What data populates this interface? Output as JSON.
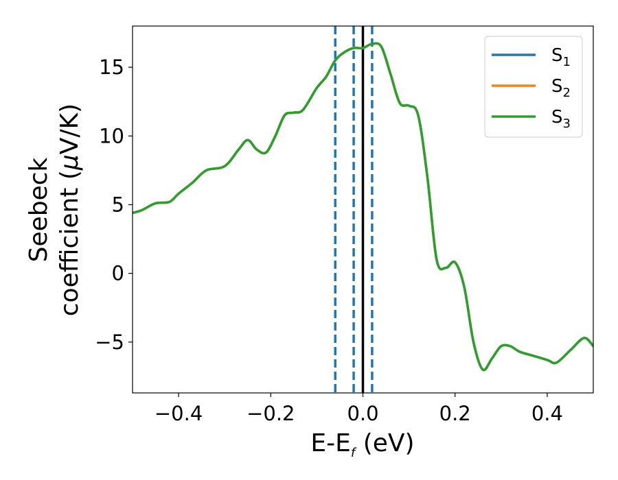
{
  "chart_data": {
    "type": "line",
    "xlabel_main": "E-E",
    "xlabel_sub": "f",
    "xlabel_unit": " (eV)",
    "ylabel_line1": "Seebeck",
    "ylabel_line2_text": "coefficient  (",
    "ylabel_line2_mu": "μ",
    "ylabel_line2_unit": "V/K)",
    "xlim": [
      -0.5,
      0.5
    ],
    "ylim": [
      -8.7,
      18.0
    ],
    "x_ticks": [
      -0.4,
      -0.2,
      0.0,
      0.2,
      0.4
    ],
    "x_tick_labels": [
      "−0.4",
      "−0.2",
      "0.0",
      "0.2",
      "0.4"
    ],
    "y_ticks": [
      -5,
      0,
      5,
      10,
      15
    ],
    "y_tick_labels": [
      "−5",
      "0",
      "5",
      "10",
      "15"
    ],
    "grid": false,
    "legend_position": "top-right",
    "series": [
      {
        "name": "S",
        "subscript": "1",
        "color": "#1f77b4",
        "x": [
          -0.5,
          -0.48,
          -0.45,
          -0.42,
          -0.4,
          -0.37,
          -0.34,
          -0.3,
          -0.27,
          -0.25,
          -0.23,
          -0.21,
          -0.19,
          -0.17,
          -0.15,
          -0.13,
          -0.1,
          -0.08,
          -0.06,
          -0.04,
          -0.02,
          0.0,
          0.02,
          0.04,
          0.06,
          0.08,
          0.1,
          0.12,
          0.14,
          0.16,
          0.18,
          0.2,
          0.22,
          0.24,
          0.26,
          0.28,
          0.3,
          0.32,
          0.34,
          0.37,
          0.4,
          0.42,
          0.45,
          0.48,
          0.5
        ],
        "y": [
          4.4,
          4.6,
          5.1,
          5.2,
          5.8,
          6.6,
          7.5,
          7.8,
          9.0,
          9.7,
          9.0,
          8.8,
          10.0,
          11.5,
          11.7,
          11.9,
          13.5,
          14.3,
          15.5,
          16.1,
          16.4,
          16.4,
          16.7,
          16.5,
          14.5,
          12.4,
          12.2,
          11.5,
          7.0,
          1.0,
          0.4,
          0.8,
          -1.0,
          -5.0,
          -7.0,
          -6.2,
          -5.3,
          -5.3,
          -5.7,
          -6.0,
          -6.3,
          -6.5,
          -5.6,
          -4.7,
          -5.3
        ]
      },
      {
        "name": "S",
        "subscript": "2",
        "color": "#ff7f0e",
        "x": [
          -0.5,
          -0.48,
          -0.45,
          -0.42,
          -0.4,
          -0.37,
          -0.34,
          -0.3,
          -0.27,
          -0.25,
          -0.23,
          -0.21,
          -0.19,
          -0.17,
          -0.15,
          -0.13,
          -0.1,
          -0.08,
          -0.06,
          -0.04,
          -0.02,
          0.0,
          0.02,
          0.04,
          0.06,
          0.08,
          0.1,
          0.12,
          0.14,
          0.16,
          0.18,
          0.2,
          0.22,
          0.24,
          0.26,
          0.28,
          0.3,
          0.32,
          0.34,
          0.37,
          0.4,
          0.42,
          0.45,
          0.48,
          0.5
        ],
        "y": [
          4.4,
          4.6,
          5.1,
          5.2,
          5.8,
          6.6,
          7.5,
          7.8,
          9.0,
          9.7,
          9.0,
          8.8,
          10.0,
          11.5,
          11.7,
          11.9,
          13.5,
          14.3,
          15.5,
          16.1,
          16.4,
          16.4,
          16.7,
          16.5,
          14.5,
          12.4,
          12.2,
          11.5,
          7.0,
          1.0,
          0.4,
          0.8,
          -1.0,
          -5.0,
          -7.0,
          -6.2,
          -5.3,
          -5.3,
          -5.7,
          -6.0,
          -6.3,
          -6.5,
          -5.6,
          -4.7,
          -5.3
        ]
      },
      {
        "name": "S",
        "subscript": "3",
        "color": "#2ca02c",
        "x": [
          -0.5,
          -0.48,
          -0.45,
          -0.42,
          -0.4,
          -0.37,
          -0.34,
          -0.3,
          -0.27,
          -0.25,
          -0.23,
          -0.21,
          -0.19,
          -0.17,
          -0.15,
          -0.13,
          -0.1,
          -0.08,
          -0.06,
          -0.04,
          -0.02,
          0.0,
          0.02,
          0.04,
          0.06,
          0.08,
          0.1,
          0.12,
          0.14,
          0.16,
          0.18,
          0.2,
          0.22,
          0.24,
          0.26,
          0.28,
          0.3,
          0.32,
          0.34,
          0.37,
          0.4,
          0.42,
          0.45,
          0.48,
          0.5
        ],
        "y": [
          4.4,
          4.6,
          5.1,
          5.2,
          5.8,
          6.6,
          7.5,
          7.8,
          9.0,
          9.7,
          9.0,
          8.8,
          10.0,
          11.5,
          11.7,
          11.9,
          13.5,
          14.3,
          15.5,
          16.1,
          16.4,
          16.4,
          16.7,
          16.5,
          14.5,
          12.4,
          12.2,
          11.5,
          7.0,
          1.0,
          0.4,
          0.8,
          -1.0,
          -5.0,
          -7.0,
          -6.2,
          -5.3,
          -5.3,
          -5.7,
          -6.0,
          -6.3,
          -6.5,
          -5.6,
          -4.7,
          -5.3
        ]
      }
    ],
    "reference_lines": [
      {
        "x": -0.06,
        "style": "dashed",
        "color": "#1f77b4"
      },
      {
        "x": -0.02,
        "style": "dashed",
        "color": "#1f77b4"
      },
      {
        "x": 0.02,
        "style": "dashed",
        "color": "#1f77b4"
      },
      {
        "x": 0.0,
        "style": "solid",
        "color": "#000000"
      }
    ]
  }
}
